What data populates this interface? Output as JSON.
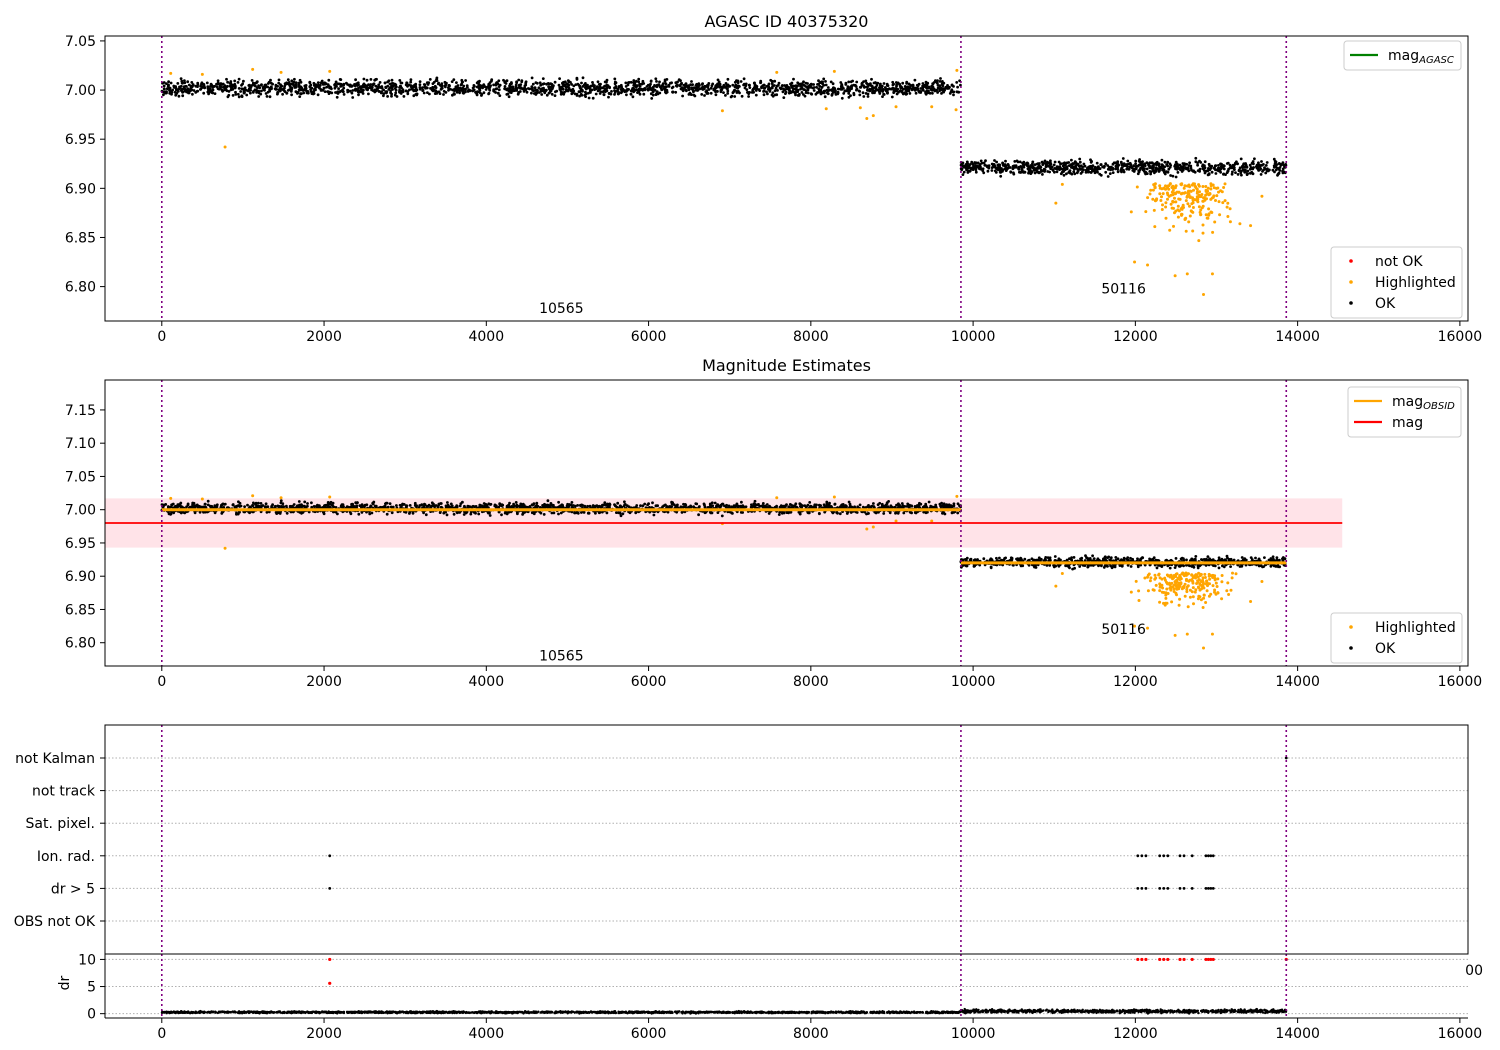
{
  "chart_data": [
    {
      "type": "scatter",
      "title": "AGASC ID 40375320",
      "xlim": [
        -700,
        16100
      ],
      "ylim": [
        6.765,
        7.055
      ],
      "x_ticks": [
        0,
        2000,
        4000,
        6000,
        8000,
        10000,
        12000,
        14000,
        16000
      ],
      "x_tick_labels": [
        "0",
        "2000",
        "4000",
        "6000",
        "8000",
        "10000",
        "12000",
        "14000",
        "16000"
      ],
      "y_ticks": [
        6.8,
        6.85,
        6.9,
        6.95,
        7.0,
        7.05
      ],
      "y_tick_labels": [
        "6.80",
        "6.85",
        "6.90",
        "6.95",
        "7.00",
        "7.05"
      ],
      "obs_boundaries": [
        0,
        9850,
        13860
      ],
      "obs_annotations": [
        {
          "text": "10565",
          "x": 4925,
          "y": 6.773
        },
        {
          "text": "50116",
          "x": 11855,
          "y": 6.793
        }
      ],
      "series": [
        {
          "name": "OK",
          "color": "#000000",
          "bands": [
            {
              "x": [
                0,
                9850
              ],
              "center": 7.002,
              "spread": 0.012
            },
            {
              "x": [
                9850,
                13860
              ],
              "center": 6.921,
              "spread": 0.011
            }
          ]
        },
        {
          "name": "Highlighted",
          "color": "#ffa500",
          "points": [
            [
              110,
              7.017
            ],
            [
              500,
              7.016
            ],
            [
              780,
              6.942
            ],
            [
              1120,
              7.021
            ],
            [
              1470,
              7.018
            ],
            [
              2070,
              7.019
            ],
            [
              6910,
              6.979
            ],
            [
              7580,
              7.018
            ],
            [
              8190,
              6.981
            ],
            [
              8290,
              7.019
            ],
            [
              8690,
              6.971
            ],
            [
              8770,
              6.974
            ],
            [
              8610,
              6.982
            ],
            [
              9050,
              6.983
            ],
            [
              9490,
              6.983
            ],
            [
              9790,
              6.98
            ],
            [
              9800,
              7.02
            ],
            [
              11020,
              6.885
            ],
            [
              11100,
              6.904
            ],
            [
              11950,
              6.876
            ],
            [
              11990,
              6.825
            ],
            [
              12150,
              6.822
            ],
            [
              12490,
              6.811
            ],
            [
              12640,
              6.813
            ],
            [
              12950,
              6.813
            ],
            [
              12840,
              6.792
            ],
            [
              13560,
              6.892
            ],
            [
              13420,
              6.862
            ]
          ],
          "cloud": {
            "x": [
              12000,
              13300
            ],
            "y": [
              6.84,
              6.905
            ],
            "count": 220
          }
        },
        {
          "name": "not OK",
          "color": "#ff0000",
          "points": []
        }
      ],
      "legends": [
        {
          "position": "upper right",
          "entries": [
            {
              "label": "mag",
              "sub": "AGASC",
              "color": "#008000",
              "kind": "line"
            }
          ]
        },
        {
          "position": "lower right",
          "entries": [
            {
              "label": "not OK",
              "color": "#ff0000",
              "kind": "dot"
            },
            {
              "label": "Highlighted",
              "color": "#ffa500",
              "kind": "dot"
            },
            {
              "label": "OK",
              "color": "#000000",
              "kind": "dot"
            }
          ]
        }
      ]
    },
    {
      "type": "scatter",
      "title": "Magnitude Estimates",
      "xlim": [
        -700,
        16100
      ],
      "ylim": [
        6.765,
        7.195
      ],
      "x_ticks": [
        0,
        2000,
        4000,
        6000,
        8000,
        10000,
        12000,
        14000,
        16000
      ],
      "x_tick_labels": [
        "0",
        "2000",
        "4000",
        "6000",
        "8000",
        "10000",
        "12000",
        "14000",
        "16000"
      ],
      "y_ticks": [
        6.8,
        6.85,
        6.9,
        6.95,
        7.0,
        7.05,
        7.1,
        7.15
      ],
      "y_tick_labels": [
        "6.80",
        "6.85",
        "6.90",
        "6.95",
        "7.00",
        "7.05",
        "7.10",
        "7.15"
      ],
      "obs_boundaries": [
        0,
        9850,
        13860
      ],
      "obs_annotations": [
        {
          "text": "10565",
          "x": 4925,
          "y": 6.773
        },
        {
          "text": "50116",
          "x": 11855,
          "y": 6.813
        }
      ],
      "mag": {
        "value": 6.98,
        "band": [
          6.943,
          7.017
        ],
        "x": [
          -700,
          14550
        ],
        "color": "#ff0000"
      },
      "mag_obsid": [
        {
          "x": [
            0,
            9850
          ],
          "value": 7.0,
          "color": "#ffa500"
        },
        {
          "x": [
            9850,
            13860
          ],
          "value": 6.92,
          "color": "#ffa500"
        }
      ],
      "series": [
        {
          "name": "OK",
          "color": "#000000",
          "bands": [
            {
              "x": [
                0,
                9850
              ],
              "center": 7.002,
              "spread": 0.012
            },
            {
              "x": [
                9850,
                13860
              ],
              "center": 6.921,
              "spread": 0.011
            }
          ]
        },
        {
          "name": "Highlighted",
          "color": "#ffa500",
          "points": [
            [
              110,
              7.017
            ],
            [
              500,
              7.016
            ],
            [
              780,
              6.942
            ],
            [
              1120,
              7.021
            ],
            [
              1470,
              7.018
            ],
            [
              2070,
              7.019
            ],
            [
              6910,
              6.979
            ],
            [
              7580,
              7.018
            ],
            [
              8290,
              7.019
            ],
            [
              8690,
              6.971
            ],
            [
              8770,
              6.974
            ],
            [
              9050,
              6.983
            ],
            [
              9490,
              6.983
            ],
            [
              9800,
              7.02
            ],
            [
              11020,
              6.885
            ],
            [
              11100,
              6.904
            ],
            [
              11950,
              6.876
            ],
            [
              11990,
              6.825
            ],
            [
              12150,
              6.822
            ],
            [
              12490,
              6.811
            ],
            [
              12640,
              6.813
            ],
            [
              12950,
              6.813
            ],
            [
              12840,
              6.792
            ],
            [
              13560,
              6.892
            ],
            [
              13420,
              6.862
            ]
          ],
          "cloud": {
            "x": [
              12000,
              13300
            ],
            "y": [
              6.84,
              6.905
            ],
            "count": 220
          }
        }
      ],
      "legends": [
        {
          "position": "upper right",
          "entries": [
            {
              "label": "mag",
              "sub": "OBSID",
              "color": "#ffa500",
              "kind": "line"
            },
            {
              "label": "mag",
              "sub": "",
              "color": "#ff0000",
              "kind": "line"
            }
          ]
        },
        {
          "position": "lower right",
          "entries": [
            {
              "label": "Highlighted",
              "color": "#ffa500",
              "kind": "dot"
            },
            {
              "label": "OK",
              "color": "#000000",
              "kind": "dot"
            }
          ]
        }
      ]
    },
    {
      "type": "scatter",
      "title": "",
      "categories": [
        "not Kalman",
        "not track",
        "Sat. pixel.",
        "Ion. rad.",
        "dr > 5",
        "OBS not OK"
      ],
      "xlim": [
        -700,
        16100
      ],
      "obs_boundaries": [
        0,
        9850,
        13860
      ],
      "flag_points": {
        "Ion. rad.": [
          2070,
          12030,
          12080,
          12130,
          12300,
          12350,
          12400,
          12550,
          12600,
          12700,
          12870,
          12900,
          12930,
          12960
        ],
        "dr > 5": [
          2070,
          12030,
          12080,
          12130,
          12300,
          12350,
          12400,
          12550,
          12600,
          12700,
          12870,
          12900,
          12930,
          12960
        ],
        "not Kalman": [
          13860
        ]
      },
      "stray_tick_text": "00"
    },
    {
      "type": "scatter",
      "title": "",
      "ylabel": "dr",
      "xlim": [
        -700,
        16100
      ],
      "ylim": [
        -0.8,
        11
      ],
      "x_ticks": [
        0,
        2000,
        4000,
        6000,
        8000,
        10000,
        12000,
        14000,
        16000
      ],
      "x_tick_labels": [
        "0",
        "2000",
        "4000",
        "6000",
        "8000",
        "10000",
        "12000",
        "14000",
        "16000"
      ],
      "y_ticks": [
        0,
        5,
        10
      ],
      "y_tick_labels": [
        "0",
        "5",
        "10"
      ],
      "obs_boundaries": [
        0,
        9850,
        13860
      ],
      "series": [
        {
          "name": "dr",
          "color": "#000000",
          "bands": [
            {
              "x": [
                0,
                9850
              ],
              "center": 0.25,
              "spread": 0.25
            },
            {
              "x": [
                9850,
                13860
              ],
              "center": 0.45,
              "spread": 0.45
            }
          ]
        },
        {
          "name": "dr > 5",
          "color": "#ff0000",
          "points": [
            [
              2070,
              10
            ],
            [
              2070,
              5.6
            ],
            [
              12030,
              10
            ],
            [
              12080,
              10
            ],
            [
              12130,
              10
            ],
            [
              12300,
              10
            ],
            [
              12350,
              10
            ],
            [
              12400,
              10
            ],
            [
              12550,
              10
            ],
            [
              12600,
              10
            ],
            [
              12700,
              10
            ],
            [
              12870,
              10
            ],
            [
              12900,
              10
            ],
            [
              12930,
              10
            ],
            [
              12960,
              10
            ],
            [
              13860,
              10
            ]
          ]
        }
      ]
    }
  ]
}
